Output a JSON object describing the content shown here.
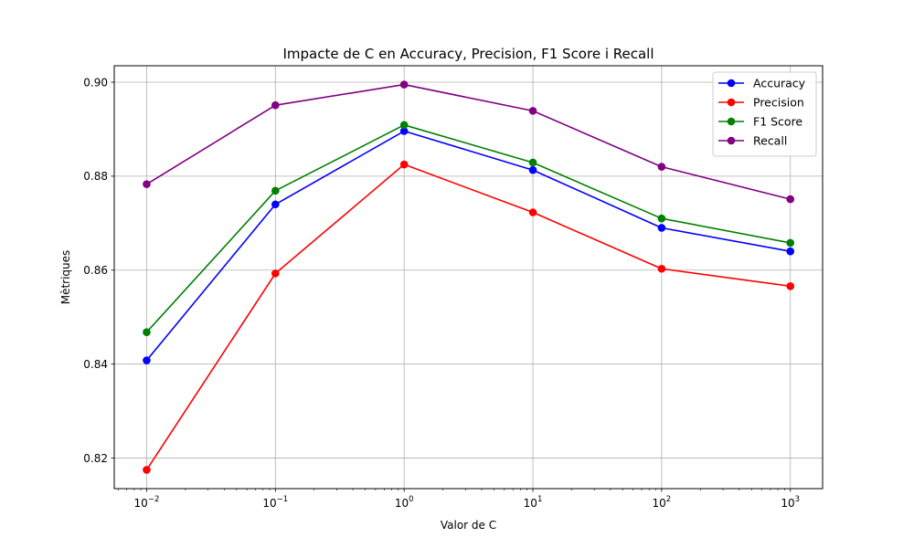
{
  "chart_data": {
    "type": "line",
    "title": "Impacte de C en Accuracy, Precision, F1 Score i Recall",
    "xlabel": "Valor de C",
    "ylabel": "Mètriques",
    "x_scale": "log",
    "x": [
      0.01,
      0.1,
      1,
      10,
      100,
      1000
    ],
    "x_tick_labels": [
      {
        "base": "10",
        "exp": "−2"
      },
      {
        "base": "10",
        "exp": "−1"
      },
      {
        "base": "10",
        "exp": "0"
      },
      {
        "base": "10",
        "exp": "1"
      },
      {
        "base": "10",
        "exp": "2"
      },
      {
        "base": "10",
        "exp": "3"
      }
    ],
    "y_ticks": [
      "0.82",
      "0.84",
      "0.86",
      "0.88",
      "0.90"
    ],
    "xlim": [
      0.0056,
      1780
    ],
    "ylim": [
      0.8135,
      0.9035
    ],
    "grid": true,
    "legend_position": "top-right",
    "series": [
      {
        "name": "Accuracy",
        "color": "#0000ff",
        "values": [
          0.8408,
          0.874,
          0.8896,
          0.8813,
          0.869,
          0.864
        ]
      },
      {
        "name": "Precision",
        "color": "#ff0000",
        "values": [
          0.8175,
          0.8593,
          0.8825,
          0.8723,
          0.8603,
          0.8566
        ]
      },
      {
        "name": "F1 Score",
        "color": "#008000",
        "values": [
          0.8468,
          0.8769,
          0.8909,
          0.8829,
          0.871,
          0.8658
        ]
      },
      {
        "name": "Recall",
        "color": "#800080",
        "values": [
          0.8783,
          0.8951,
          0.8995,
          0.8939,
          0.882,
          0.8751
        ]
      }
    ]
  }
}
